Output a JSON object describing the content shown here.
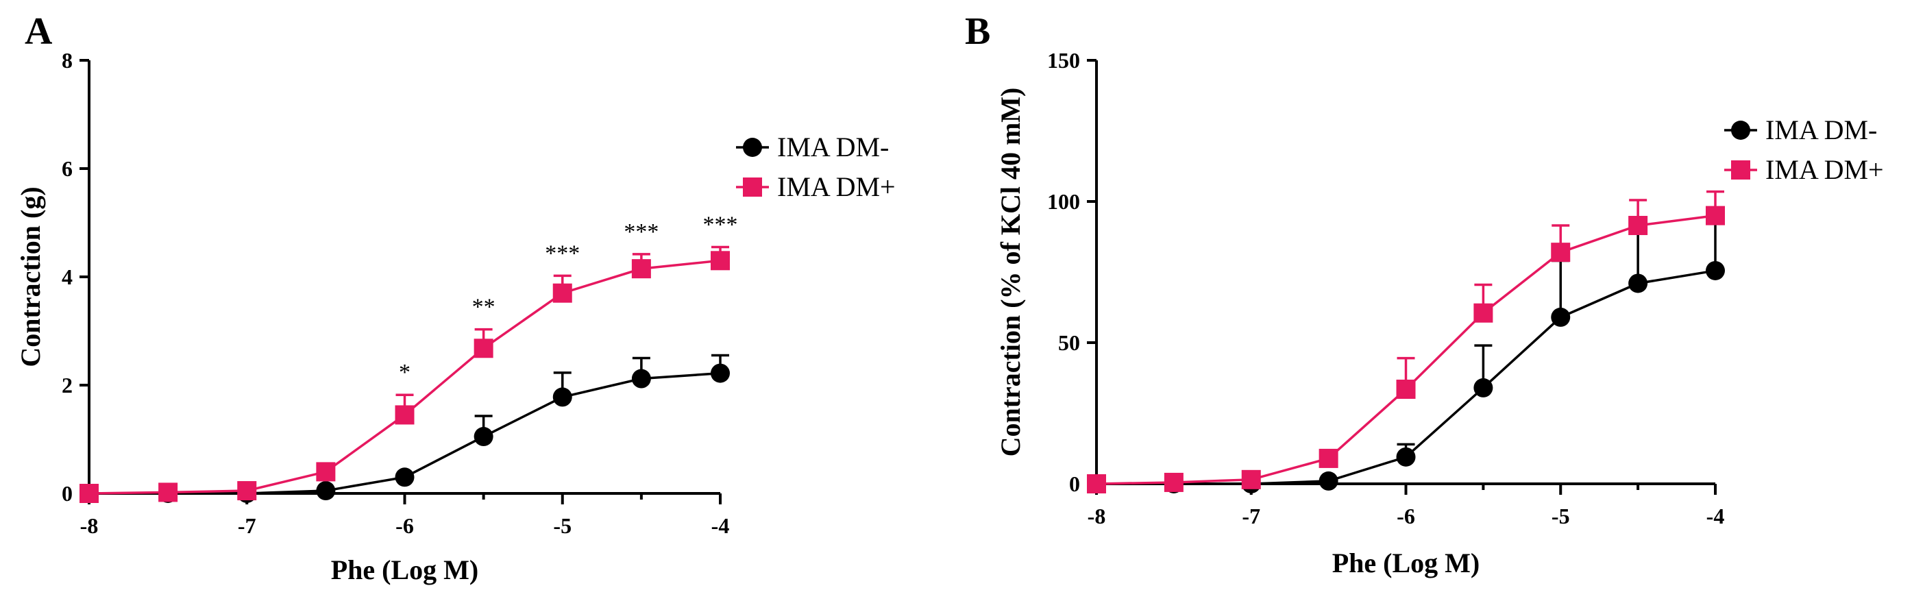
{
  "chart_data": [
    {
      "panel": "A",
      "type": "line",
      "xlabel": "Phe (Log M)",
      "ylabel": "Contraction (g)",
      "xlim": [
        -8,
        -4
      ],
      "ylim": [
        0,
        8
      ],
      "xticks": [
        -8,
        -7,
        -6,
        -5,
        -4
      ],
      "xtick_labels": [
        "-8",
        "-7",
        "-6",
        "-5",
        "-4"
      ],
      "yticks": [
        0,
        2,
        4,
        6,
        8
      ],
      "ytick_labels": [
        "0",
        "2",
        "4",
        "6",
        "8"
      ],
      "x": [
        -8,
        -7.5,
        -7,
        -6.5,
        -6,
        -5.5,
        -5,
        -4.5,
        -4
      ],
      "series": [
        {
          "name": "IMA DM-",
          "marker": "circle",
          "color": "#000000",
          "values": [
            0,
            0,
            0,
            0.05,
            0.3,
            1.05,
            1.78,
            2.12,
            2.22
          ],
          "errors": [
            0,
            0,
            0,
            0,
            0.05,
            0.38,
            0.45,
            0.38,
            0.33
          ]
        },
        {
          "name": "IMA DM+",
          "marker": "square",
          "color": "#E6185F",
          "values": [
            0,
            0.02,
            0.05,
            0.4,
            1.45,
            2.68,
            3.7,
            4.15,
            4.3
          ],
          "errors": [
            0,
            0.05,
            0.08,
            0.05,
            0.37,
            0.35,
            0.32,
            0.27,
            0.25
          ]
        }
      ],
      "annotations": [
        {
          "x": -6,
          "label": "*"
        },
        {
          "x": -5.5,
          "label": "**"
        },
        {
          "x": -5,
          "label": "***"
        },
        {
          "x": -4.5,
          "label": "***"
        },
        {
          "x": -4,
          "label": "***"
        }
      ],
      "legend_position": "top-right"
    },
    {
      "panel": "B",
      "type": "line",
      "xlabel": "Phe (Log M)",
      "ylabel": "Contraction (% of KCl 40 mM)",
      "xlim": [
        -8,
        -4
      ],
      "ylim": [
        0,
        150
      ],
      "xticks": [
        -8,
        -7,
        -6,
        -5,
        -4
      ],
      "xtick_labels": [
        "-8",
        "-7",
        "-6",
        "-5",
        "-4"
      ],
      "yticks": [
        0,
        50,
        100,
        150
      ],
      "ytick_labels": [
        "0",
        "50",
        "100",
        "150"
      ],
      "x": [
        -8,
        -7.5,
        -7,
        -6.5,
        -6,
        -5.5,
        -5,
        -4.5,
        -4
      ],
      "series": [
        {
          "name": "IMA DM-",
          "marker": "circle",
          "color": "#000000",
          "values": [
            0,
            0,
            0,
            1,
            9.5,
            34,
            59,
            71,
            75.5
          ],
          "errors": [
            0,
            0,
            0,
            0,
            4.5,
            15,
            20,
            20,
            20
          ]
        },
        {
          "name": "IMA DM+",
          "marker": "square",
          "color": "#E6185F",
          "values": [
            0,
            0.5,
            1.5,
            9,
            33.5,
            60.5,
            82,
            91.5,
            95
          ],
          "errors": [
            0,
            0,
            0,
            0,
            11,
            10,
            9.5,
            9,
            8.5
          ]
        }
      ],
      "annotations": [],
      "legend_position": "top-right"
    }
  ]
}
